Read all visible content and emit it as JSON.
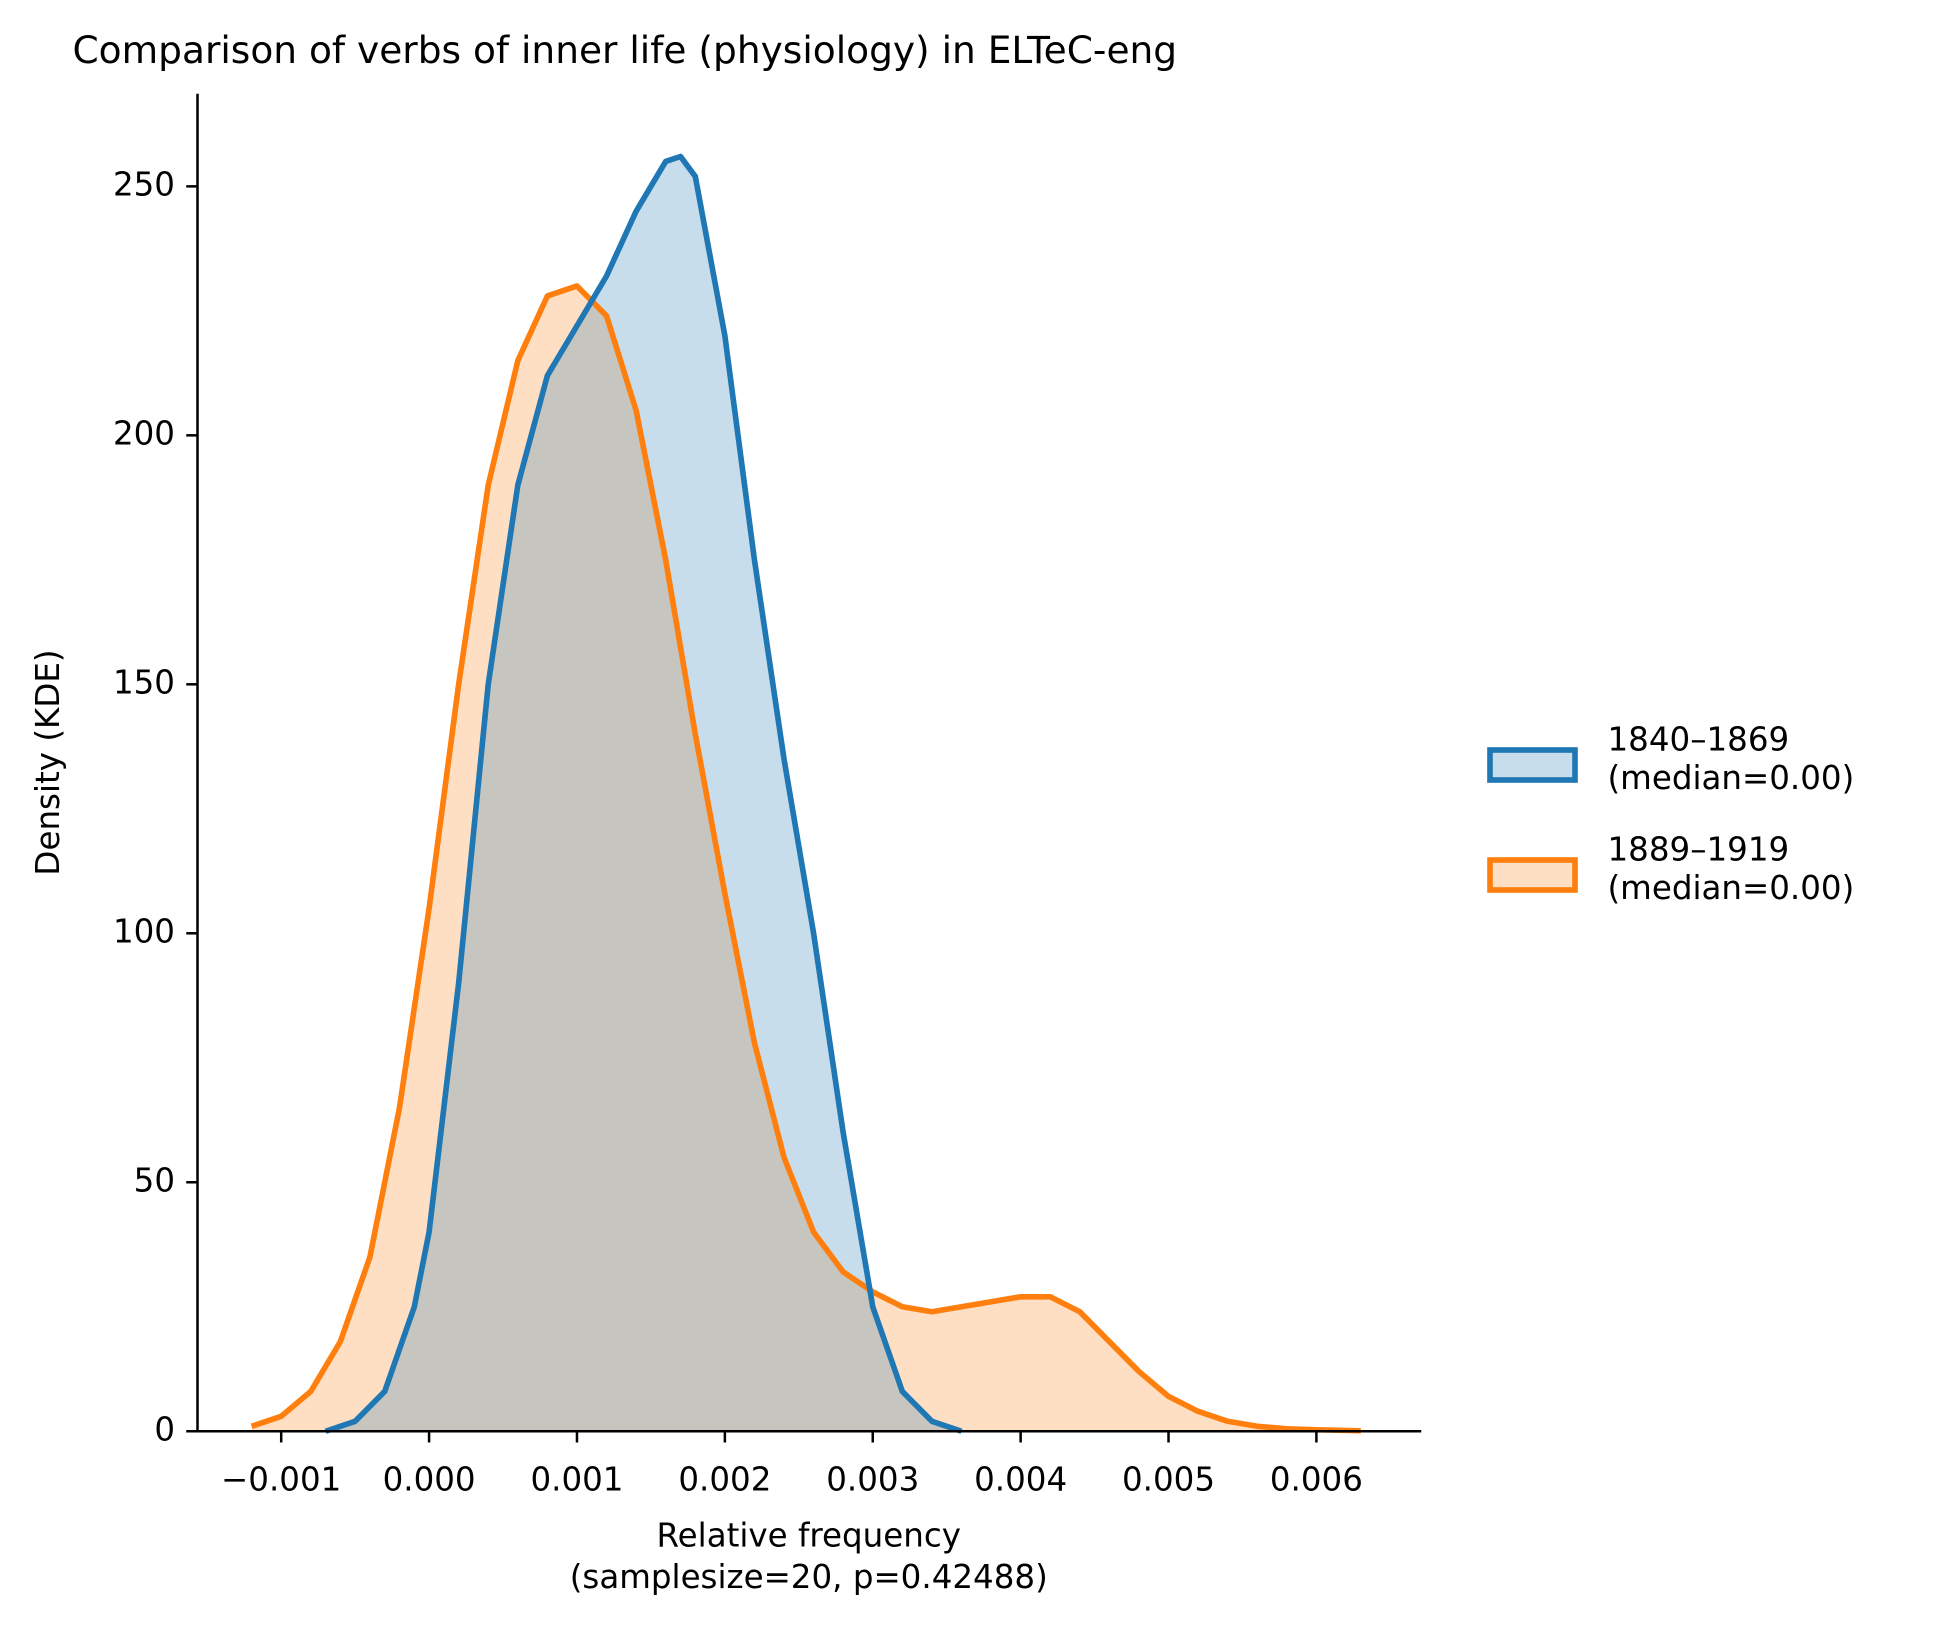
{
  "chart_data": {
    "type": "kde",
    "title": "Comparison of verbs of inner life (physiology) in ELTeC-eng",
    "x_label": "Relative frequency\n(samplesize=20, p=0.42488)",
    "y_label": "Density (KDE)",
    "xlim": [
      -0.001566,
      0.006709
    ],
    "ylim": [
      0,
      268.6
    ],
    "xticks": [
      {
        "value": -0.001,
        "label": "−0.001"
      },
      {
        "value": 0,
        "label": "0.000"
      },
      0.001,
      0.002,
      0.003,
      0.004,
      0.005,
      0.006
    ],
    "yticks": [
      0,
      50,
      100,
      150,
      200,
      250
    ],
    "legend_position": "right",
    "series": [
      {
        "name": "1840–1869\n(median=0.00)",
        "color": "#1f77b4",
        "x": [
          -0.0007,
          -0.0005,
          -0.0003,
          -0.0001,
          0.0,
          0.0002,
          0.0004,
          0.0006,
          0.0008,
          0.001,
          0.0012,
          0.0014,
          0.0016,
          0.0017,
          0.0018,
          0.002,
          0.0022,
          0.0024,
          0.0026,
          0.0028,
          0.003,
          0.0032,
          0.0034,
          0.0036
        ],
        "values": [
          0,
          2,
          8,
          25,
          40,
          90,
          150,
          190,
          212,
          222,
          232,
          245,
          255,
          256,
          252,
          220,
          175,
          135,
          100,
          60,
          25,
          8,
          2,
          0
        ]
      },
      {
        "name": "1889–1919\n(median=0.00)",
        "color": "#ff7f0e",
        "x": [
          -0.0012,
          -0.001,
          -0.0008,
          -0.0006,
          -0.0004,
          -0.0002,
          0.0,
          0.0002,
          0.0004,
          0.0006,
          0.0008,
          0.001,
          0.0012,
          0.0014,
          0.0016,
          0.0018,
          0.002,
          0.0022,
          0.0024,
          0.0026,
          0.0028,
          0.003,
          0.0032,
          0.0034,
          0.0036,
          0.0038,
          0.004,
          0.0042,
          0.0044,
          0.0046,
          0.0048,
          0.005,
          0.0052,
          0.0054,
          0.0056,
          0.0058,
          0.006,
          0.0063
        ],
        "values": [
          1,
          3,
          8,
          18,
          35,
          65,
          105,
          150,
          190,
          215,
          228,
          230,
          224,
          205,
          175,
          140,
          108,
          78,
          55,
          40,
          32,
          28,
          25,
          24,
          25,
          26,
          27,
          27,
          24,
          18,
          12,
          7,
          4,
          2,
          1,
          0.5,
          0.3,
          0.1
        ]
      }
    ]
  }
}
